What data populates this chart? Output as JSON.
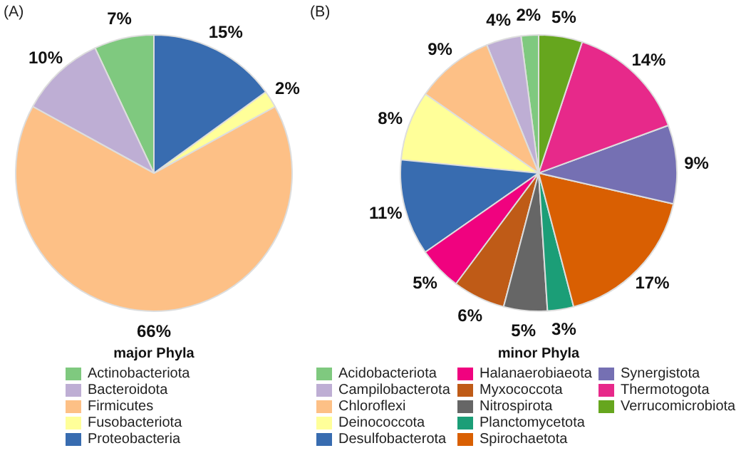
{
  "chart_data": [
    {
      "type": "pie",
      "title": "(A)",
      "legend_title": "major Phyla",
      "legend": "bottom",
      "categories": [
        "Actinobacteriota",
        "Bacteroidota",
        "Firmicutes",
        "Fusobacteriota",
        "Proteobacteria"
      ],
      "values": [
        7,
        10,
        66,
        2,
        15
      ],
      "value_labels": [
        "7%",
        "10%",
        "66%",
        "2%",
        "15%"
      ],
      "colors": [
        "#7fc97f",
        "#beaed4",
        "#fdc086",
        "#ffff99",
        "#386cb0"
      ]
    },
    {
      "type": "pie",
      "title": "(B)",
      "legend_title": "minor Phyla",
      "legend": "bottom",
      "categories": [
        "Acidobacteriota",
        "Campilobacterota",
        "Chloroflexi",
        "Deinococcota",
        "Desulfobacterota",
        "Halanaerobiaeota",
        "Myxococcota",
        "Nitrospirota",
        "Planctomycetota",
        "Spirochaetota",
        "Synergistota",
        "Thermotogota",
        "Verrucomicrobiota"
      ],
      "values": [
        2,
        4,
        9,
        8,
        11,
        5,
        6,
        5,
        3,
        17,
        9,
        14,
        5
      ],
      "value_labels": [
        "2%",
        "4%",
        "9%",
        "8%",
        "11%",
        "5%",
        "6%",
        "5%",
        "3%",
        "17%",
        "9%",
        "14%",
        "5%"
      ],
      "colors": [
        "#7fc97f",
        "#beaed4",
        "#fdc086",
        "#ffff99",
        "#386cb0",
        "#f0027f",
        "#bf5b17",
        "#666666",
        "#1b9e77",
        "#d95f02",
        "#7570b3",
        "#e7298a",
        "#66a61e"
      ]
    }
  ]
}
